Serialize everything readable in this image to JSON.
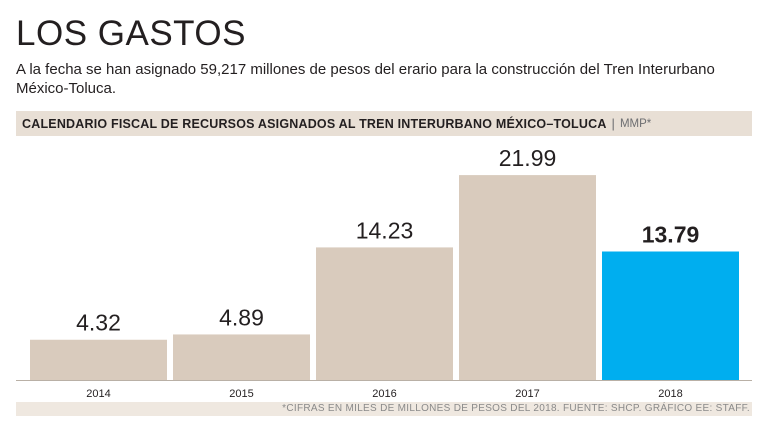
{
  "header": {
    "title": "LOS GASTOS",
    "subtitle": "A la fecha se han asignado 59,217 millones de pesos del erario para la construcción del Tren Interurbano México-Toluca."
  },
  "chart_band": {
    "title": "CALENDARIO FISCAL DE RECURSOS ASIGNADOS AL TREN INTERURBANO MÉXICO–TOLUCA",
    "separator": "|",
    "unit": "MMP*"
  },
  "chart_data": {
    "type": "bar",
    "categories": [
      "2014",
      "2015",
      "2016",
      "2017",
      "2018"
    ],
    "values": [
      4.32,
      4.89,
      14.23,
      21.99,
      13.79
    ],
    "value_labels": [
      "4.32",
      "4.89",
      "14.23",
      "21.99",
      "13.79"
    ],
    "highlight_index": 4,
    "colors": {
      "default": "#d9cbbd",
      "highlight": "#00aeef",
      "axis": "#b9b0a6"
    },
    "ylim": [
      0,
      22
    ],
    "grid": false,
    "legend": "none"
  },
  "footnote": "*CIFRAS EN MILES DE MILLONES DE PESOS  DEL 2018.  FUENTE: SHCP.  GRÁFICO EE: STAFF."
}
